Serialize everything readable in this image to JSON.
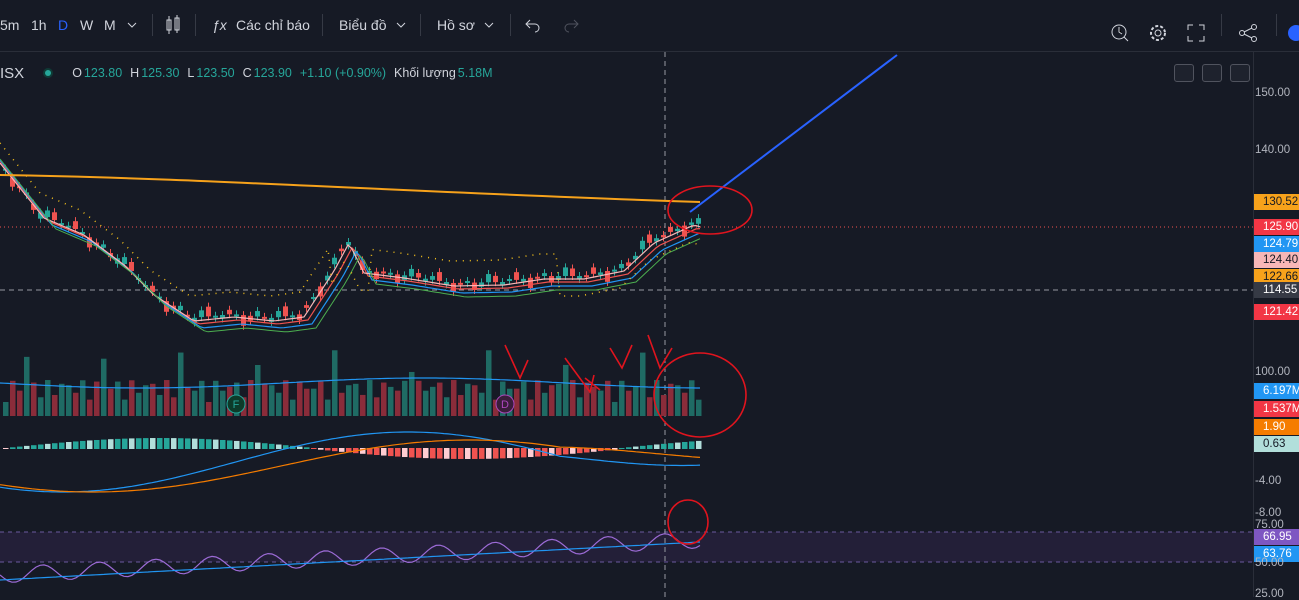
{
  "toolbar": {
    "intervals": [
      "5m",
      "1h",
      "D",
      "W",
      "M"
    ],
    "indicators": "Các chỉ báo",
    "chart_type": "Biểu đồ",
    "profile": "Hồ sơ"
  },
  "header": {
    "symbol": "ISX",
    "open_label": "O",
    "open": "123.80",
    "high_label": "H",
    "high": "125.30",
    "low_label": "L",
    "low": "123.50",
    "close_label": "C",
    "close": "123.90",
    "change": "+1.10 (+0.90%)",
    "volume_label": "Khối lượng",
    "volume": "5.18M"
  },
  "events": [
    "F",
    "D"
  ],
  "price_axis": [
    "150.00",
    "140.00",
    "130.52",
    "125.90",
    "124.79",
    "124.40",
    "122.66",
    "114.55",
    "121.42",
    "100.00",
    "6.197M",
    "1.537M",
    "1.90",
    "0.63",
    "-4.00",
    "-8.00",
    "75.00",
    "66.95",
    "63.76",
    "50.00",
    "25.00"
  ]
}
